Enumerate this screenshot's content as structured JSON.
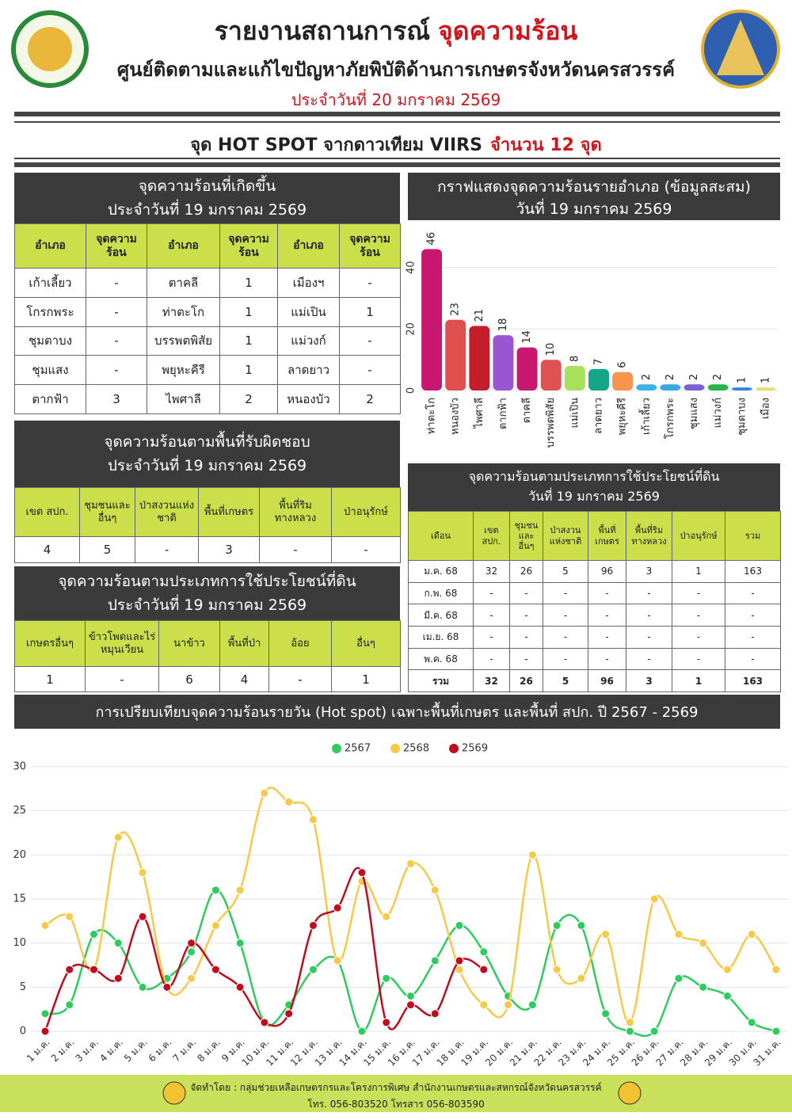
{
  "header": {
    "title": "รายงานสถานการณ์",
    "title_highlight": "จุดความร้อน",
    "subtitle": "ศูนย์ติดตามและแก้ไขปัญหาภัยพิบัติด้านการเกษตรจังหวัดนครสวรรค์",
    "date": "ประจำวันที่ 20 มกราคม 2569",
    "banner": "จุด HOT SPOT จากดาวเทียม VIIRS",
    "banner_highlight": "จำนวน 12 จุด"
  },
  "tables": [
    {
      "title": [
        "จุดความร้อนที่เกิดขึ้น",
        "ประจำวันที่ 19 มกราคม 2569"
      ],
      "header": [
        "อำเภอ",
        "จุดความร้อน",
        "อำเภอ",
        "จุดความร้อน",
        "อำเภอ",
        "จุดความร้อน"
      ],
      "rows": [
        [
          "เก้าเลี้ยว",
          "-",
          "ตาคลี",
          "1",
          "เมืองฯ",
          "-"
        ],
        [
          "โกรกพระ",
          "-",
          "ท่าตะโก",
          "1",
          "แม่เปิน",
          "1"
        ],
        [
          "ชุมตาบง",
          "-",
          "บรรพตพิสัย",
          "1",
          "แม่วงก์",
          "-"
        ],
        [
          "ชุมแสง",
          "-",
          "พยุหะคีรี",
          "1",
          "ลาดยาว",
          "-"
        ],
        [
          "ตากฟ้า",
          "3",
          "ไพศาลี",
          "2",
          "หนองบัว",
          "2"
        ]
      ]
    },
    {
      "title": [
        "จุดความร้อนตามพื้นที่รับผิดชอบ",
        "ประจำวันที่ 19 มกราคม 2569"
      ],
      "header": [
        "เขต สปก.",
        "ชุมชนและอื่นๆ",
        "ป่าสงวนแห่งชาติ",
        "พื้นที่เกษตร",
        "พื้นที่ริมทางหลวง",
        "ป่าอนุรักษ์"
      ],
      "rows": [
        [
          "4",
          "5",
          "-",
          "3",
          "-",
          "-"
        ]
      ]
    },
    {
      "title": [
        "จุดความร้อนตามประเภทการใช้ประโยชน์ที่ดิน",
        "ประจำวันที่ 19 มกราคม 2569"
      ],
      "header": [
        "เกษตรอื่นๆ",
        "ข้าวโพดและไร่หมุนเวียน",
        "นาข้าว",
        "พื้นที่ป่า",
        "อ้อย",
        "อื่นๆ"
      ],
      "rows": [
        [
          "1",
          "-",
          "6",
          "4",
          "-",
          "1"
        ]
      ]
    },
    {
      "title": [
        "จุดความร้อนตามประเภทการใช้ประโยชน์ที่ดิน",
        "วันที่ 19 มกราคม  2569"
      ],
      "header": [
        "เดือน",
        "เขต สปก.",
        "ชุมชนและอื่นๆ",
        "ป่าสงวนแห่งชาติ",
        "พื้นที่เกษตร",
        "พื้นที่ริมทางหลวง",
        "ป่าอนุรักษ์",
        "รวม"
      ],
      "rows": [
        [
          "ม.ค. 68",
          "32",
          "26",
          "5",
          "96",
          "3",
          "1",
          "163"
        ],
        [
          "ก.พ. 68",
          "-",
          "-",
          "-",
          "-",
          "-",
          "-",
          "-"
        ],
        [
          "มี.ค. 68",
          "-",
          "-",
          "-",
          "-",
          "-",
          "-",
          "-"
        ],
        [
          "เม.ย. 68",
          "-",
          "-",
          "-",
          "-",
          "-",
          "-",
          "-"
        ],
        [
          "พ.ค. 68",
          "-",
          "-",
          "-",
          "-",
          "-",
          "-",
          "-"
        ],
        [
          "รวม",
          "32",
          "26",
          "5",
          "96",
          "3",
          "1",
          "163"
        ]
      ]
    }
  ],
  "chart_data": [
    {
      "type": "bar",
      "title": "กราฟแสดงจุดความร้อนรายอำเภอ (ข้อมูลสะสม)",
      "subtitle": "วันที่ 19 มกราคม 2569",
      "categories": [
        "ท่าตะโก",
        "หนองบัว",
        "ไพศาลี",
        "ตากฟ้า",
        "ตาคลี",
        "บรรพตพิสัย",
        "แม่เปิน",
        "ลาดยาว",
        "พยุหะคีรี",
        "เก้าเลี้ยว",
        "โกรกพระ",
        "ชุมแสง",
        "แม่วงก์",
        "ชุมตาบง",
        "เมือง"
      ],
      "values": [
        46,
        23,
        21,
        18,
        14,
        10,
        8,
        7,
        6,
        2,
        2,
        2,
        2,
        1,
        1
      ],
      "colors": [
        "#c8176e",
        "#e04e4e",
        "#c41e2a",
        "#9b55d2",
        "#c8176e",
        "#e05252",
        "#a8e05c",
        "#15a58a",
        "#f5964c",
        "#3ab4e8",
        "#3aa8e0",
        "#7a62d4",
        "#2bb34a",
        "#3a80e2",
        "#e8e06a"
      ],
      "ylim": [
        0,
        50
      ],
      "yticks": [
        0,
        20,
        40
      ],
      "grid": true
    },
    {
      "type": "line",
      "title": "การเปรียบเทียบจุดความร้อนรายวัน (Hot spot)  เฉพาะพื้นที่เกษตร และพื้นที่ สปก. ปี 2567 - 2569",
      "categories": [
        "1 ม.ค.",
        "2 ม.ค.",
        "3 ม.ค.",
        "4 ม.ค.",
        "5 ม.ค.",
        "6 ม.ค.",
        "7 ม.ค.",
        "8 ม.ค.",
        "9 ม.ค.",
        "10 ม.ค.",
        "11 ม.ค.",
        "12 ม.ค.",
        "13 ม.ค.",
        "14 ม.ค.",
        "15 ม.ค.",
        "16 ม.ค.",
        "17 ม.ค.",
        "18 ม.ค.",
        "19 ม.ค.",
        "20 ม.ค.",
        "21 ม.ค.",
        "22 ม.ค.",
        "23 ม.ค.",
        "24 ม.ค.",
        "25 ม.ค.",
        "26 ม.ค.",
        "27 ม.ค.",
        "28 ม.ค.",
        "29 ม.ค.",
        "30 ม.ค.",
        "31 ม.ค."
      ],
      "series": [
        {
          "name": "2567",
          "color": "#2ecc5f",
          "values": [
            2,
            3,
            11,
            10,
            5,
            6,
            9,
            16,
            10,
            1,
            3,
            7,
            8,
            0,
            6,
            4,
            8,
            12,
            9,
            4,
            3,
            12,
            12,
            2,
            0,
            0,
            6,
            5,
            4,
            1,
            0
          ]
        },
        {
          "name": "2568",
          "color": "#f7c948",
          "values": [
            12,
            13,
            7,
            22,
            18,
            5,
            6,
            12,
            16,
            27,
            26,
            24,
            8,
            17,
            13,
            19,
            16,
            7,
            3,
            3,
            20,
            7,
            6,
            11,
            1,
            15,
            11,
            10,
            7,
            11,
            7
          ]
        },
        {
          "name": "2569",
          "color": "#c00d1e",
          "values": [
            0,
            7,
            7,
            6,
            13,
            5,
            10,
            7,
            5,
            1,
            2,
            12,
            14,
            18,
            1,
            3,
            2,
            8,
            7,
            null,
            null,
            null,
            null,
            null,
            null,
            null,
            null,
            null,
            null,
            null,
            null
          ]
        }
      ],
      "ylim": [
        0,
        30
      ],
      "yticks": [
        0,
        5,
        10,
        15,
        20,
        25,
        30
      ],
      "grid": true,
      "legend": "top"
    }
  ],
  "footer": {
    "credit": "จัดทำโดย : กลุ่มช่วยเหลือเกษตรกรและโครงการพิเศษ สำนักงานเกษตรและสหกรณ์จังหวัดนครสวรรค์",
    "contact": "โทร. 056-803520 โทรสาร 056-803590"
  }
}
